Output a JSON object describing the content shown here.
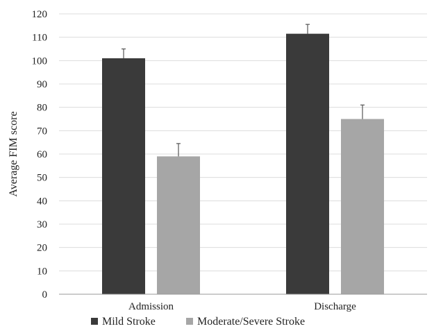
{
  "chart_data": {
    "type": "bar",
    "title": "",
    "xlabel": "",
    "ylabel": "Average FIM score",
    "ylim": [
      0,
      120
    ],
    "y_ticks": [
      0,
      10,
      20,
      30,
      40,
      50,
      60,
      70,
      80,
      90,
      100,
      110,
      120
    ],
    "grid": true,
    "legend_position": "bottom",
    "categories": [
      "Admission",
      "Discharge"
    ],
    "series": [
      {
        "name": "Mild Stroke",
        "color": "#3a3a3a",
        "values": [
          101,
          111.5
        ],
        "error_upper": [
          4,
          4
        ]
      },
      {
        "name": "Moderate/Severe Stroke",
        "color": "#a6a6a6",
        "values": [
          59,
          75
        ],
        "error_upper": [
          5.5,
          6
        ]
      }
    ]
  }
}
